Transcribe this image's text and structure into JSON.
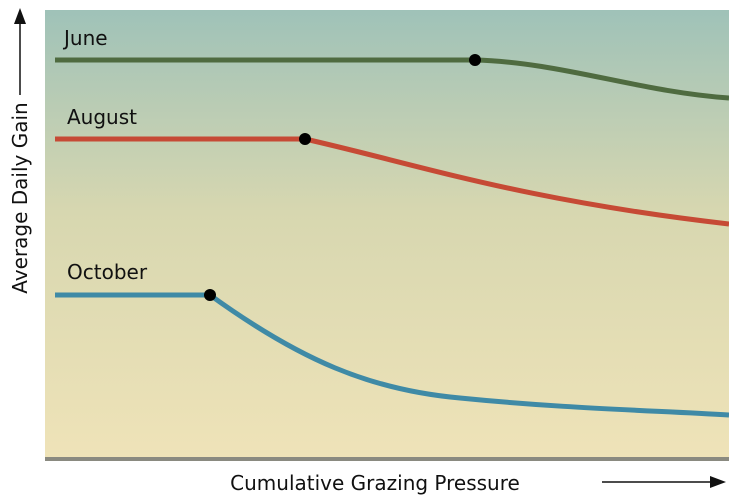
{
  "y_axis_label": "Average Daily Gain",
  "x_axis_label": "Cumulative Grazing Pressure",
  "curves": [
    {
      "label": "June"
    },
    {
      "label": "August"
    },
    {
      "label": "October"
    }
  ]
}
